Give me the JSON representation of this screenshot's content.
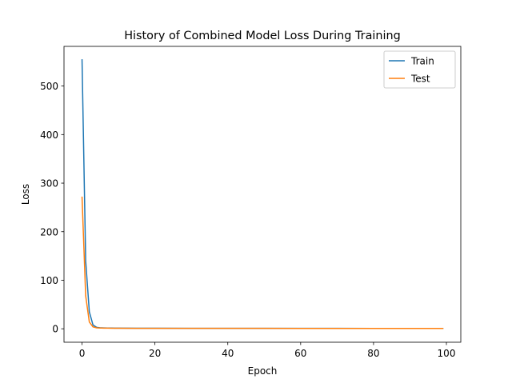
{
  "chart_data": {
    "type": "line",
    "title": "History of Combined Model Loss During Training",
    "xlabel": "Epoch",
    "ylabel": "Loss",
    "xlim": [
      -4.95,
      103.95
    ],
    "ylim": [
      -27.7,
      581.7
    ],
    "xticks": [
      0,
      20,
      40,
      60,
      80,
      100
    ],
    "yticks": [
      0,
      100,
      200,
      300,
      400,
      500
    ],
    "grid": false,
    "legend_position": "top-right",
    "series": [
      {
        "name": "Train",
        "color": "#1f77b4",
        "x": [
          0,
          1,
          2,
          3,
          4,
          5,
          6,
          7,
          8,
          9,
          10,
          15,
          20,
          30,
          40,
          50,
          60,
          70,
          80,
          90,
          99
        ],
        "values": [
          554,
          140,
          35,
          8,
          3,
          2,
          1.8,
          1.6,
          1.5,
          1.4,
          1.3,
          1.2,
          1.1,
          1.0,
          1.0,
          0.9,
          0.9,
          0.9,
          0.8,
          0.8,
          0.8
        ]
      },
      {
        "name": "Test",
        "color": "#ff7f0e",
        "x": [
          0,
          1,
          2,
          3,
          4,
          5,
          6,
          7,
          8,
          9,
          10,
          15,
          20,
          30,
          40,
          50,
          60,
          70,
          80,
          90,
          99
        ],
        "values": [
          271,
          68,
          14,
          4,
          2,
          1.6,
          1.4,
          1.3,
          1.2,
          1.1,
          1.1,
          1.0,
          1.0,
          0.9,
          0.9,
          0.9,
          0.8,
          0.8,
          0.8,
          0.8,
          0.8
        ]
      }
    ]
  }
}
